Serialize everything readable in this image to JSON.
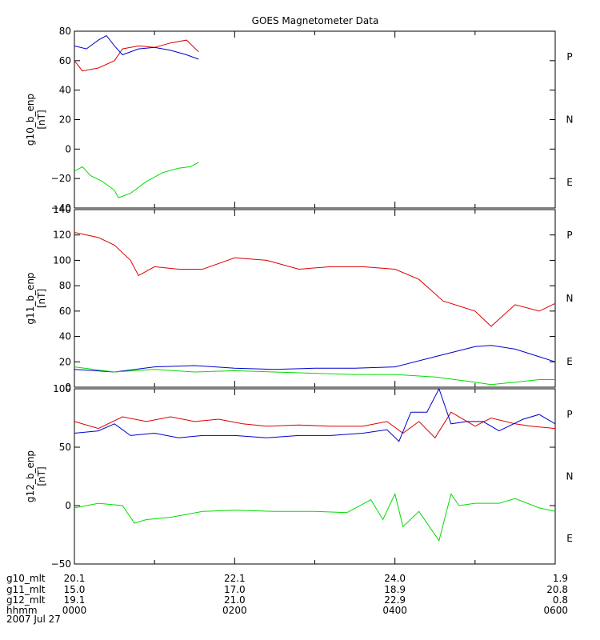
{
  "title": "GOES Magnetometer Data",
  "colors": {
    "P": "#dd0000",
    "N": "#00dd00",
    "E": "#0000cc"
  },
  "legend": [
    {
      "key": "P",
      "label": "P"
    },
    {
      "key": "N",
      "label": "N"
    },
    {
      "key": "E",
      "label": "E"
    }
  ],
  "time_axis": {
    "columns": [
      {
        "hour": 0,
        "g10_mlt": "20.1",
        "g11_mlt": "15.0",
        "g12_mlt": "19.1",
        "hhmm": "0000"
      },
      {
        "hour": 2,
        "g10_mlt": "22.1",
        "g11_mlt": "17.0",
        "g12_mlt": "21.0",
        "hhmm": "0200"
      },
      {
        "hour": 4,
        "g10_mlt": "24.0",
        "g11_mlt": "18.9",
        "g12_mlt": "22.9",
        "hhmm": "0400"
      },
      {
        "hour": 6,
        "g10_mlt": "1.9",
        "g11_mlt": "20.8",
        "g12_mlt": "0.8",
        "hhmm": "0600"
      }
    ],
    "row_labels": [
      "g10_mlt",
      "g11_mlt",
      "g12_mlt",
      "hhmm"
    ],
    "date": "2007 Jul 27"
  },
  "chart_data": [
    {
      "type": "line",
      "ylabel": "g10_b_enp",
      "yunit": "[nT]",
      "ylim": [
        -40,
        80
      ],
      "yticks": [
        -40,
        -20,
        0,
        20,
        40,
        60,
        80
      ],
      "ytick_labels": [
        "−40",
        "−20",
        "0",
        "20",
        "40",
        "60",
        "80"
      ],
      "xlim": [
        0,
        6
      ],
      "series": [
        {
          "name": "P",
          "color": "#dd0000",
          "x": [
            0,
            0.1,
            0.3,
            0.5,
            0.6,
            0.8,
            1.0,
            1.2,
            1.4,
            1.55
          ],
          "y": [
            60,
            53,
            55,
            60,
            68,
            70,
            69,
            72,
            74,
            66
          ]
        },
        {
          "name": "E",
          "color": "#0000cc",
          "x": [
            0,
            0.15,
            0.3,
            0.4,
            0.5,
            0.6,
            0.8,
            1.0,
            1.2,
            1.4,
            1.55
          ],
          "y": [
            70,
            68,
            74,
            77,
            70,
            64,
            68,
            69,
            67,
            64,
            61
          ]
        },
        {
          "name": "N",
          "color": "#00dd00",
          "x": [
            0,
            0.1,
            0.2,
            0.35,
            0.5,
            0.55,
            0.7,
            0.9,
            1.1,
            1.3,
            1.45,
            1.55
          ],
          "y": [
            -15,
            -12,
            -18,
            -22,
            -28,
            -33,
            -30,
            -22,
            -16,
            -13,
            -12,
            -9
          ]
        }
      ]
    },
    {
      "type": "line",
      "ylabel": "g11_b_enp",
      "yunit": "[nT]",
      "ylim": [
        0,
        140
      ],
      "yticks": [
        0,
        20,
        40,
        60,
        80,
        100,
        120,
        140
      ],
      "ytick_labels": [
        "0",
        "20",
        "40",
        "60",
        "80",
        "100",
        "120",
        "140"
      ],
      "xlim": [
        0,
        6
      ],
      "series": [
        {
          "name": "P",
          "color": "#dd0000",
          "x": [
            0,
            0.3,
            0.5,
            0.7,
            0.8,
            1.0,
            1.3,
            1.6,
            2.0,
            2.4,
            2.8,
            3.2,
            3.6,
            4.0,
            4.3,
            4.6,
            4.8,
            5.0,
            5.2,
            5.5,
            5.8,
            6.0
          ],
          "y": [
            122,
            118,
            112,
            100,
            88,
            95,
            93,
            93,
            102,
            100,
            93,
            95,
            95,
            93,
            85,
            68,
            64,
            60,
            48,
            65,
            60,
            66
          ]
        },
        {
          "name": "E",
          "color": "#0000cc",
          "x": [
            0,
            0.5,
            1.0,
            1.5,
            2.0,
            2.5,
            3.0,
            3.5,
            4.0,
            4.5,
            5.0,
            5.2,
            5.5,
            5.8,
            6.0
          ],
          "y": [
            14,
            12,
            16,
            17,
            15,
            14,
            15,
            15,
            16,
            24,
            32,
            33,
            30,
            24,
            20
          ]
        },
        {
          "name": "N",
          "color": "#00dd00",
          "x": [
            0,
            0.5,
            1.0,
            1.5,
            2.0,
            2.5,
            3.0,
            3.5,
            4.0,
            4.5,
            5.0,
            5.2,
            5.5,
            5.8,
            6.0
          ],
          "y": [
            16,
            12,
            14,
            12,
            13,
            12,
            11,
            10,
            10,
            8,
            4,
            2,
            4,
            6,
            6
          ]
        }
      ]
    },
    {
      "type": "line",
      "ylabel": "g12_b_enp",
      "yunit": "[nT]",
      "ylim": [
        -50,
        100
      ],
      "yticks": [
        -50,
        0,
        50,
        100
      ],
      "ytick_labels": [
        "−50",
        "0",
        "50",
        "100"
      ],
      "xlim": [
        0,
        6
      ],
      "series": [
        {
          "name": "P",
          "color": "#dd0000",
          "x": [
            0,
            0.3,
            0.6,
            0.9,
            1.2,
            1.5,
            1.8,
            2.1,
            2.4,
            2.8,
            3.2,
            3.6,
            3.9,
            4.1,
            4.3,
            4.5,
            4.7,
            5.0,
            5.2,
            5.5,
            5.7,
            6.0
          ],
          "y": [
            72,
            66,
            76,
            72,
            76,
            72,
            74,
            70,
            68,
            69,
            68,
            68,
            72,
            62,
            72,
            58,
            80,
            68,
            75,
            70,
            68,
            66
          ]
        },
        {
          "name": "E",
          "color": "#0000cc",
          "x": [
            0,
            0.3,
            0.5,
            0.7,
            1.0,
            1.3,
            1.6,
            2.0,
            2.4,
            2.8,
            3.2,
            3.6,
            3.9,
            4.05,
            4.2,
            4.4,
            4.55,
            4.7,
            4.9,
            5.1,
            5.3,
            5.6,
            5.8,
            6.0
          ],
          "y": [
            62,
            64,
            70,
            60,
            62,
            58,
            60,
            60,
            58,
            60,
            60,
            62,
            65,
            55,
            80,
            80,
            100,
            70,
            72,
            72,
            64,
            74,
            78,
            70
          ]
        },
        {
          "name": "N",
          "color": "#00dd00",
          "x": [
            0,
            0.3,
            0.6,
            0.75,
            0.9,
            1.2,
            1.6,
            2.0,
            2.5,
            3.0,
            3.4,
            3.7,
            3.85,
            4.0,
            4.1,
            4.3,
            4.45,
            4.55,
            4.7,
            4.8,
            5.0,
            5.3,
            5.5,
            5.8,
            6.0
          ],
          "y": [
            -2,
            2,
            0,
            -15,
            -12,
            -10,
            -5,
            -4,
            -5,
            -5,
            -6,
            5,
            -12,
            10,
            -18,
            -5,
            -20,
            -30,
            10,
            0,
            2,
            2,
            6,
            -2,
            -5
          ]
        }
      ]
    }
  ]
}
